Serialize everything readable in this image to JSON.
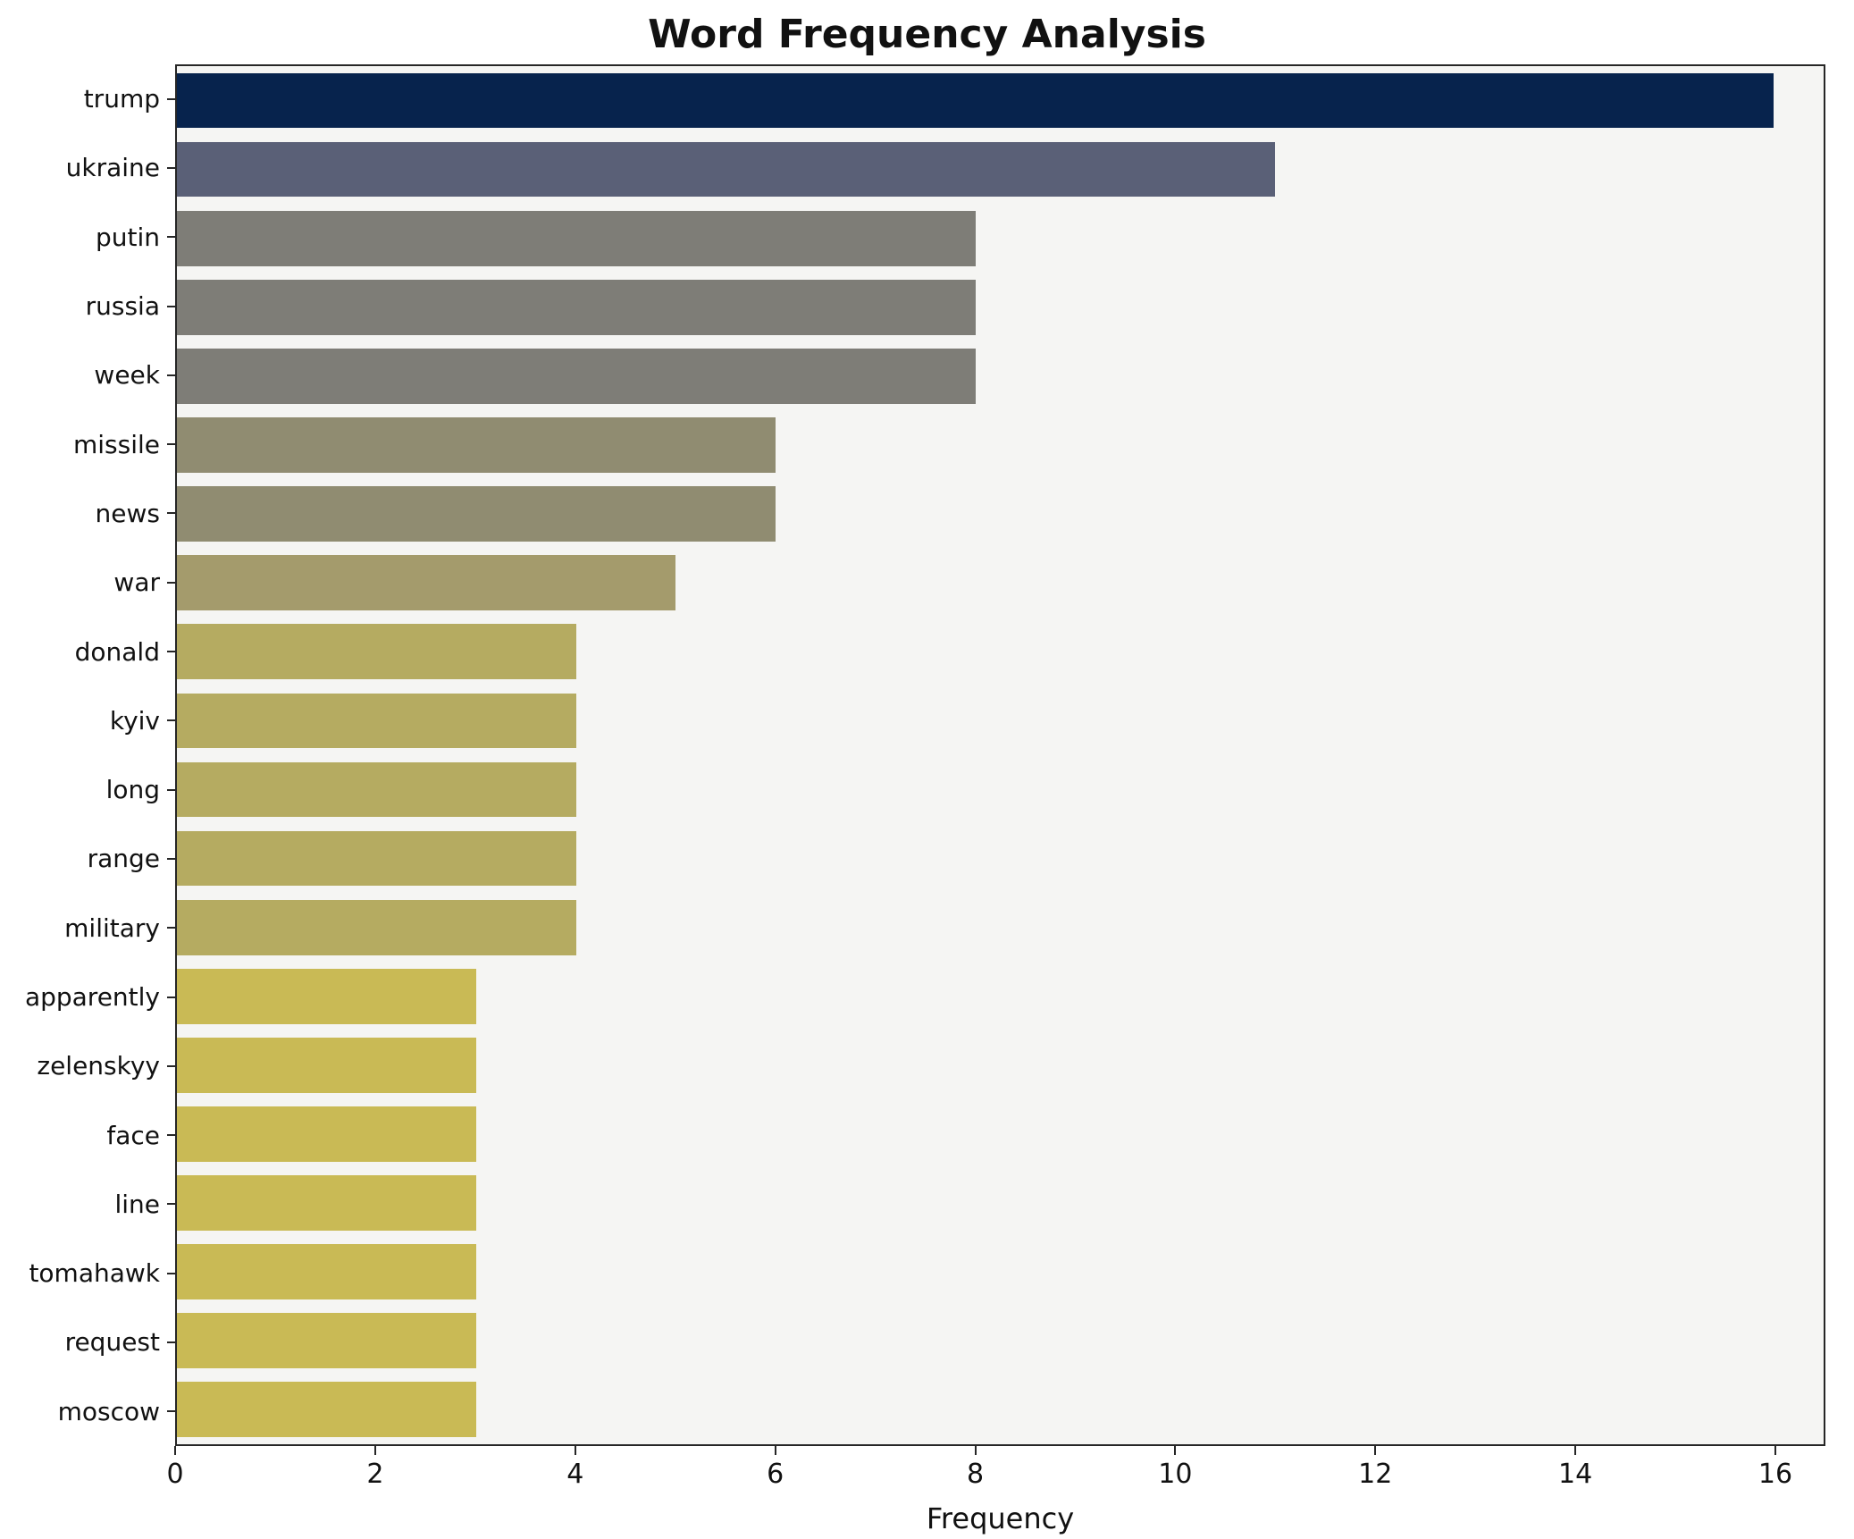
{
  "title": "Word Frequency Analysis",
  "chart_data": {
    "type": "bar",
    "orientation": "horizontal",
    "title": "Word Frequency Analysis",
    "xlabel": "Frequency",
    "ylabel": "",
    "categories": [
      "trump",
      "ukraine",
      "putin",
      "russia",
      "week",
      "missile",
      "news",
      "war",
      "donald",
      "kyiv",
      "long",
      "range",
      "military",
      "apparently",
      "zelenskyy",
      "face",
      "line",
      "tomahawk",
      "request",
      "moscow"
    ],
    "values": [
      16,
      11,
      8,
      8,
      8,
      6,
      6,
      5,
      4,
      4,
      4,
      4,
      4,
      3,
      3,
      3,
      3,
      3,
      3,
      3
    ],
    "colors": [
      "#07234d",
      "#5a6077",
      "#7e7d77",
      "#7e7d77",
      "#7e7d77",
      "#908c71",
      "#908c71",
      "#a49b6c",
      "#b5ab61",
      "#b5ab61",
      "#b5ab61",
      "#b5ab61",
      "#b5ab61",
      "#c9ba55",
      "#c9ba55",
      "#c9ba55",
      "#c9ba55",
      "#c9ba55",
      "#c9ba55",
      "#c9ba55"
    ],
    "x_ticks": [
      0,
      2,
      4,
      6,
      8,
      10,
      12,
      14,
      16
    ],
    "xlim": [
      0,
      16.5
    ],
    "grid": false,
    "legend": false,
    "plot_background": "#f5f5f3",
    "figure_background": "#ffffff"
  }
}
